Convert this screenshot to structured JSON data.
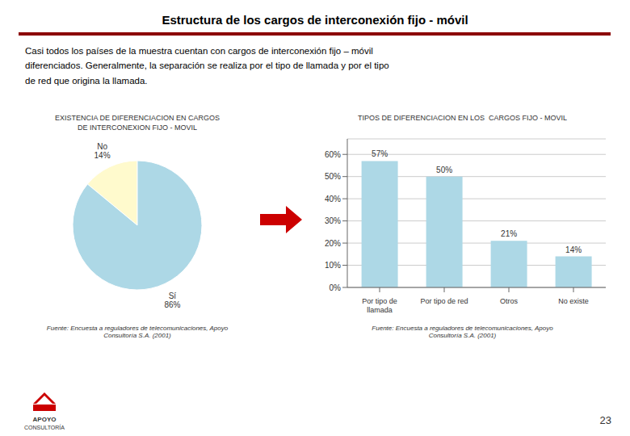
{
  "title": "Estructura de los cargos de interconexión fijo - móvil",
  "subtitle": "Casi todos los países de la muestra cuentan con cargos de interconexión fijo – móvil\ndiferenciados. Generalmente, la separación se realiza por el tipo de llamada y por el tipo\nde red que origina la llamada.",
  "annotations": [
    "23",
    "APOYO",
    "CONSULTORÍA"
  ],
  "chart_data": [
    {
      "type": "pie",
      "title": "EXISTENCIA DE DIFERENCIACION EN CARGOS\nDE INTERCONEXION FIJO - MOVIL",
      "categories": [
        "No",
        "Sí"
      ],
      "values": [
        14,
        86
      ],
      "value_labels": [
        "No\n14%",
        "Sí\n86%"
      ],
      "colors": [
        "#FFFACD",
        "#ADD8E6"
      ],
      "data_labels": true,
      "annotations": [
        "Fuente: Encuesta a reguladores de telecomunicaciones, Apoyo\nConsultoría S.A. (2001)"
      ]
    },
    {
      "type": "bar",
      "title": "TIPOS DE DIFERENCIACION EN LOS  CARGOS FIJO - MOVIL",
      "categories": [
        "Por tipo de\nllamada",
        "Por tipo de red",
        "Otros",
        "No existe"
      ],
      "values": [
        57,
        50,
        21,
        14
      ],
      "value_labels": [
        "57%",
        "50%",
        "21%",
        "14%"
      ],
      "color": "#ADD8E6",
      "ylim": [
        0,
        67
      ],
      "yticks": [
        {
          "value": 0,
          "label": "0%"
        },
        {
          "value": 10,
          "label": "10%"
        },
        {
          "value": 20,
          "label": "20%"
        },
        {
          "value": 30,
          "label": "30%"
        },
        {
          "value": 40,
          "label": "40%"
        },
        {
          "value": 50,
          "label": "50%"
        },
        {
          "value": 60,
          "label": "60%"
        }
      ],
      "grid": true,
      "data_labels": true,
      "annotations": [
        "Fuente: Encuesta a reguladores de telecomunicaciones, Apoyo\nConsultoría S.A. (2001)"
      ]
    }
  ]
}
